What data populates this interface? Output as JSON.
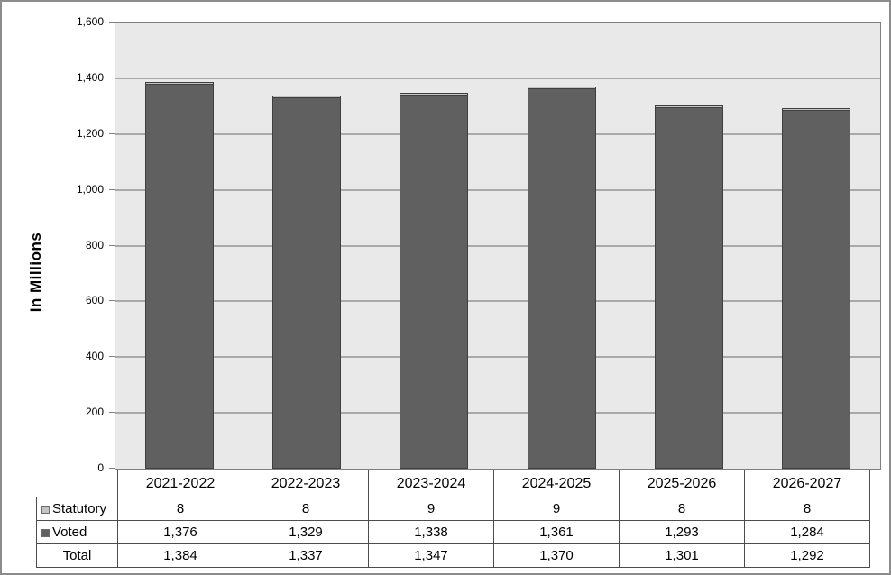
{
  "colors": {
    "plot_background": "#e9e9e9",
    "plot_border": "#808080",
    "gridline": "#a9a9a9",
    "bar_border": "#3f3f3f",
    "statutory_fill": "#c4c4c4",
    "voted_fill": "#606060",
    "table_border": "#4d4d4d",
    "outer_border": "#8c8c8c"
  },
  "chart_data": {
    "type": "bar",
    "stacked": true,
    "title": "",
    "ylabel": "In Millions",
    "xlabel": "",
    "ylim": [
      0,
      1600
    ],
    "ytick_step": 200,
    "ytick_labels": [
      "0",
      "200",
      "400",
      "600",
      "800",
      "1,000",
      "1,200",
      "1,400",
      "1,600"
    ],
    "grid": "horizontal",
    "legend_position": "table-left-column",
    "categories": [
      "2021-2022",
      "2022-2023",
      "2023-2024",
      "2024-2025",
      "2025-2026",
      "2026-2027"
    ],
    "series": [
      {
        "name": "Statutory",
        "color": "#c4c4c4",
        "values": [
          8,
          8,
          9,
          9,
          8,
          8
        ]
      },
      {
        "name": "Voted",
        "color": "#606060",
        "values": [
          1376,
          1329,
          1338,
          1361,
          1293,
          1284
        ]
      }
    ],
    "totals": [
      1384,
      1337,
      1347,
      1370,
      1301,
      1292
    ]
  },
  "table": {
    "header_years": [
      "2021-2022",
      "2022-2023",
      "2023-2024",
      "2024-2025",
      "2025-2026",
      "2026-2027"
    ],
    "rows": [
      {
        "label": "Statutory",
        "marker_color": "#c4c4c4",
        "values": [
          "8",
          "8",
          "9",
          "9",
          "8",
          "8"
        ]
      },
      {
        "label": "Voted",
        "marker_color": "#606060",
        "values": [
          "1,376",
          "1,329",
          "1,338",
          "1,361",
          "1,293",
          "1,284"
        ]
      },
      {
        "label": "Total",
        "marker_color": null,
        "values": [
          "1,384",
          "1,337",
          "1,347",
          "1,370",
          "1,301",
          "1,292"
        ]
      }
    ]
  }
}
